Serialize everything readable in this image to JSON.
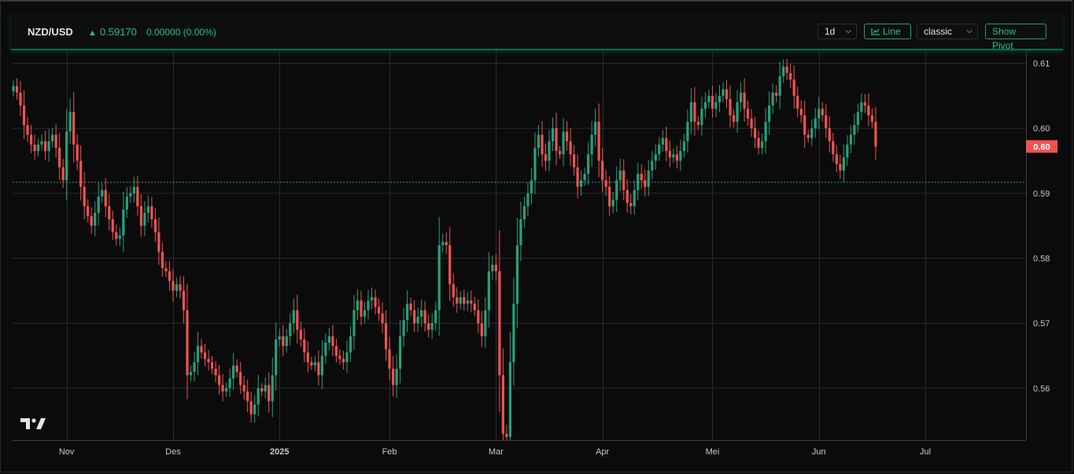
{
  "header": {
    "symbol": "NZD/USD",
    "price": "0.59170",
    "change": "0.00000 (0.00%)",
    "interval": "1d",
    "line_button": "Line",
    "style_select": "classic",
    "pivot_button": "Show Pivot"
  },
  "colors": {
    "up": "#26a17a",
    "down": "#ef5350",
    "grid": "#2a2a35",
    "background": "#0b0b0c",
    "accent": "#26c281"
  },
  "chart_data": {
    "type": "candlestick",
    "instrument": "NZD/USD",
    "interval": "1d",
    "ylim": [
      0.552,
      0.612
    ],
    "y_ticks": [
      {
        "value": 0.56,
        "label": "0.56"
      },
      {
        "value": 0.57,
        "label": "0.57"
      },
      {
        "value": 0.58,
        "label": "0.58"
      },
      {
        "value": 0.59,
        "label": "0.59"
      },
      {
        "value": 0.6,
        "label": "0.60"
      },
      {
        "value": 0.61,
        "label": "0.61"
      }
    ],
    "x_ticks": [
      {
        "label": "Nov",
        "bar": 15
      },
      {
        "label": "Des",
        "bar": 45
      },
      {
        "label": "2025",
        "bar": 75
      },
      {
        "label": "Feb",
        "bar": 106
      },
      {
        "label": "Mar",
        "bar": 136
      },
      {
        "label": "Apr",
        "bar": 166
      },
      {
        "label": "Mei",
        "bar": 197
      },
      {
        "label": "Jun",
        "bar": 227
      },
      {
        "label": "Jul",
        "bar": 257
      }
    ],
    "last_price_label": "0.60",
    "last_price": 0.5972,
    "reference_line": 0.5917,
    "grid": true,
    "closes": [
      0.6065,
      0.6055,
      0.6035,
      0.6005,
      0.599,
      0.5975,
      0.5965,
      0.5975,
      0.598,
      0.5965,
      0.598,
      0.599,
      0.597,
      0.594,
      0.592,
      0.5995,
      0.6025,
      0.5975,
      0.595,
      0.591,
      0.588,
      0.5865,
      0.585,
      0.587,
      0.5895,
      0.5905,
      0.588,
      0.586,
      0.584,
      0.583,
      0.5835,
      0.5875,
      0.5895,
      0.59,
      0.591,
      0.588,
      0.585,
      0.587,
      0.588,
      0.586,
      0.584,
      0.581,
      0.5785,
      0.578,
      0.5765,
      0.575,
      0.576,
      0.575,
      0.572,
      0.562,
      0.5625,
      0.564,
      0.5665,
      0.5655,
      0.5645,
      0.564,
      0.563,
      0.562,
      0.5605,
      0.5595,
      0.56,
      0.5615,
      0.5635,
      0.5625,
      0.5605,
      0.5595,
      0.558,
      0.556,
      0.5575,
      0.56,
      0.5595,
      0.5605,
      0.558,
      0.562,
      0.5675,
      0.568,
      0.5665,
      0.568,
      0.57,
      0.572,
      0.569,
      0.5675,
      0.5655,
      0.564,
      0.5635,
      0.564,
      0.562,
      0.565,
      0.567,
      0.568,
      0.5665,
      0.565,
      0.5645,
      0.564,
      0.5655,
      0.568,
      0.572,
      0.5735,
      0.571,
      0.572,
      0.5735,
      0.574,
      0.5725,
      0.5715,
      0.57,
      0.566,
      0.563,
      0.5605,
      0.563,
      0.568,
      0.5705,
      0.573,
      0.572,
      0.57,
      0.571,
      0.572,
      0.57,
      0.569,
      0.57,
      0.572,
      0.582,
      0.5825,
      0.582,
      0.576,
      0.574,
      0.573,
      0.574,
      0.573,
      0.5735,
      0.573,
      0.572,
      0.57,
      0.568,
      0.572,
      0.578,
      0.579,
      0.578,
      0.562,
      0.553,
      0.5525,
      0.564,
      0.573,
      0.582,
      0.586,
      0.588,
      0.59,
      0.592,
      0.597,
      0.599,
      0.596,
      0.595,
      0.598,
      0.6,
      0.5965,
      0.596,
      0.5995,
      0.598,
      0.596,
      0.594,
      0.591,
      0.592,
      0.593,
      0.596,
      0.599,
      0.601,
      0.595,
      0.592,
      0.591,
      0.588,
      0.589,
      0.592,
      0.5935,
      0.5905,
      0.5885,
      0.588,
      0.5905,
      0.593,
      0.592,
      0.591,
      0.5935,
      0.595,
      0.596,
      0.5975,
      0.5985,
      0.5965,
      0.5955,
      0.596,
      0.595,
      0.5965,
      0.598,
      0.601,
      0.604,
      0.601,
      0.6005,
      0.603,
      0.604,
      0.605,
      0.603,
      0.604,
      0.605,
      0.606,
      0.6045,
      0.602,
      0.601,
      0.604,
      0.6055,
      0.603,
      0.6015,
      0.6,
      0.5985,
      0.597,
      0.598,
      0.601,
      0.6035,
      0.6055,
      0.605,
      0.608,
      0.6095,
      0.6085,
      0.6075,
      0.605,
      0.603,
      0.602,
      0.599,
      0.5985,
      0.6,
      0.6015,
      0.603,
      0.602,
      0.6,
      0.598,
      0.596,
      0.5945,
      0.5935,
      0.5955,
      0.5975,
      0.599,
      0.6005,
      0.6025,
      0.604,
      0.6035,
      0.602,
      0.601,
      0.5972
    ]
  }
}
